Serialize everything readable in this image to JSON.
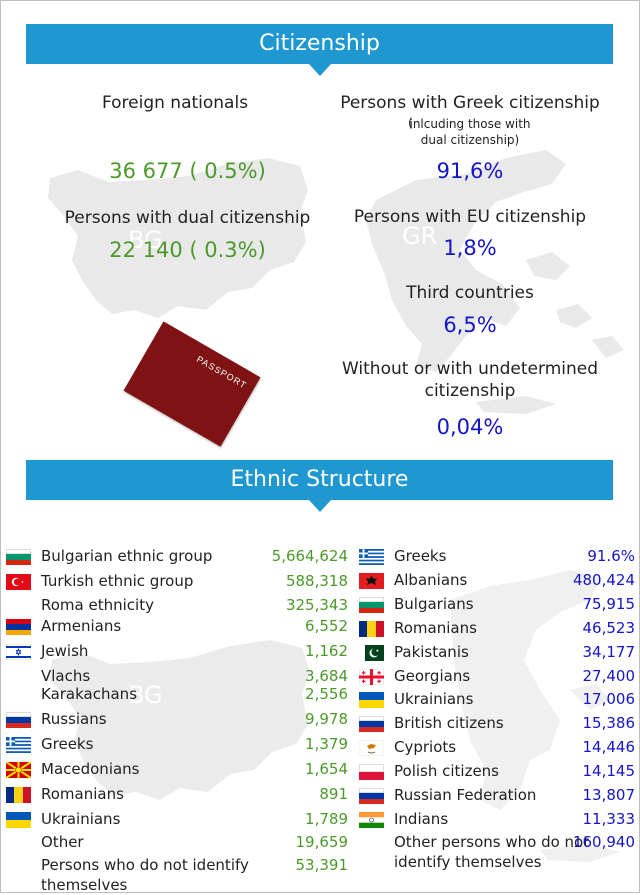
{
  "citizenship": {
    "banner_title": "Citizenship",
    "bg": {
      "map_label": "BG",
      "foreign_label": "Foreign nationals",
      "foreign_value": "36 677 ( 0.5%)",
      "dual_label": "Persons with dual citizenship",
      "dual_value": "22 140 ( 0.3%)"
    },
    "gr": {
      "map_label": "GR",
      "greek_label": "Persons with Greek citizenship",
      "greek_note_1": "inlcuding those with",
      "greek_note_2": "dual citizenship)",
      "greek_value": "91,6%",
      "eu_label": "Persons with EU citizenship",
      "eu_value": "1,8%",
      "third_label": "Third countries",
      "third_value": "6,5%",
      "undet_label_1": "Without or with undetermined",
      "undet_label_2": "citizenship",
      "undet_value": "0,04%"
    },
    "passport_text": "PASSPORT"
  },
  "ethnic": {
    "banner_title": "Ethnic Structure",
    "bg_map_label": "BG",
    "bulgaria": [
      {
        "name": "Bulgarian ethnic group",
        "value": "5,664,624",
        "flag": "bulgaria-flag-icon"
      },
      {
        "name": "Turkish ethnic group",
        "value": "588,318",
        "flag": "turkey-flag-icon"
      },
      {
        "name": "Roma ethnicity",
        "value": "325,343",
        "flag": ""
      },
      {
        "name": "Armenians",
        "value": "6,552",
        "flag": "armenia-flag-icon"
      },
      {
        "name": "Jewish",
        "value": "1,162",
        "flag": "israel-flag-icon"
      },
      {
        "name": "Vlachs",
        "value": "3,684",
        "flag": ""
      },
      {
        "name": "Karakachans",
        "value": "2,556",
        "flag": ""
      },
      {
        "name": "Russians",
        "value": "9,978",
        "flag": "russia-flag-icon"
      },
      {
        "name": "Greeks",
        "value": "1,379",
        "flag": "greece-flag-icon"
      },
      {
        "name": "Macedonians",
        "value": "1,654",
        "flag": "macedonia-flag-icon"
      },
      {
        "name": "Romanians",
        "value": "891",
        "flag": "romania-flag-icon"
      },
      {
        "name": "Ukrainians",
        "value": "1,789",
        "flag": "ukraine-flag-icon"
      },
      {
        "name": "Other",
        "value": "19,659",
        "flag": ""
      },
      {
        "name": "Persons who do not identify themselves",
        "value": "53,391",
        "flag": ""
      }
    ],
    "greece": [
      {
        "name": "Greeks",
        "value": "91.6%",
        "flag": "greece-flag-icon"
      },
      {
        "name": "Albanians",
        "value": "480,424",
        "flag": "albania-flag-icon"
      },
      {
        "name": "Bulgarians",
        "value": "75,915",
        "flag": "bulgaria-flag-icon"
      },
      {
        "name": "Romanians",
        "value": "46,523",
        "flag": "romania-flag-icon"
      },
      {
        "name": "Pakistanis",
        "value": "34,177",
        "flag": "pakistan-flag-icon"
      },
      {
        "name": "Georgians",
        "value": "27,400",
        "flag": "georgia-flag-icon"
      },
      {
        "name": "Ukrainians",
        "value": "17,006",
        "flag": "ukraine-flag-icon"
      },
      {
        "name": "British citizens",
        "value": "15,386",
        "flag": "uk-flag-icon"
      },
      {
        "name": "Cypriots",
        "value": "14,446",
        "flag": "cyprus-flag-icon"
      },
      {
        "name": "Polish citizens",
        "value": "14,145",
        "flag": "poland-flag-icon"
      },
      {
        "name": "Russian Federation",
        "value": "13,807",
        "flag": "russia-flag-icon"
      },
      {
        "name": "Indians",
        "value": "11,333",
        "flag": "india-flag-icon"
      },
      {
        "name": "Other persons who do not identify themselves",
        "value": "160,940",
        "flag": ""
      }
    ]
  }
}
